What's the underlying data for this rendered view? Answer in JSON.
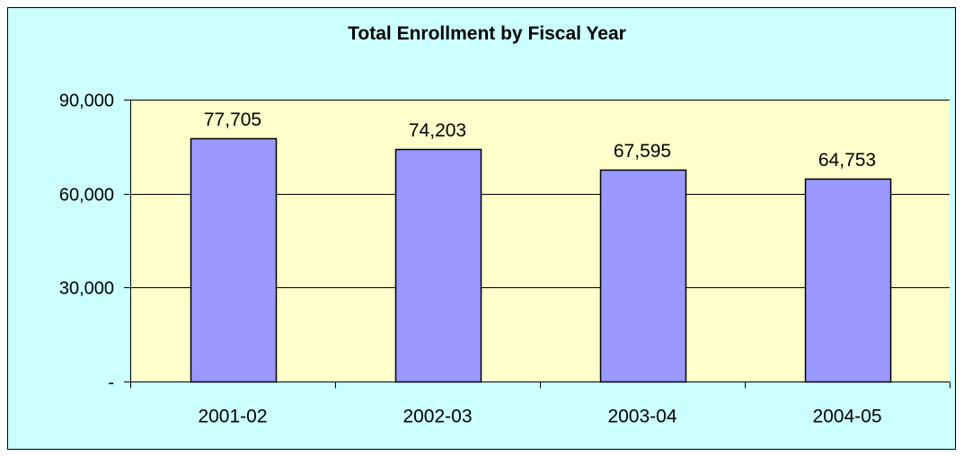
{
  "chart_data": {
    "type": "bar",
    "title": "Total Enrollment by Fiscal Year",
    "categories": [
      "2001-02",
      "2002-03",
      "2003-04",
      "2004-05"
    ],
    "values": [
      77705,
      74203,
      67595,
      64753
    ],
    "data_labels": [
      "77,705",
      "74,203",
      "67,595",
      "64,753"
    ],
    "yticks": [
      {
        "value": 0,
        "label": "-"
      },
      {
        "value": 30000,
        "label": "30,000"
      },
      {
        "value": 60000,
        "label": "60,000"
      },
      {
        "value": 90000,
        "label": "90,000"
      }
    ],
    "ylim": [
      0,
      90000
    ],
    "grid": true,
    "legend": "none",
    "colors": {
      "chart_background": "#ccffff",
      "plot_background": "#ffffcc",
      "bar_fill": "#9999ff",
      "bar_stroke": "#000000",
      "gridline": "#000000"
    }
  }
}
